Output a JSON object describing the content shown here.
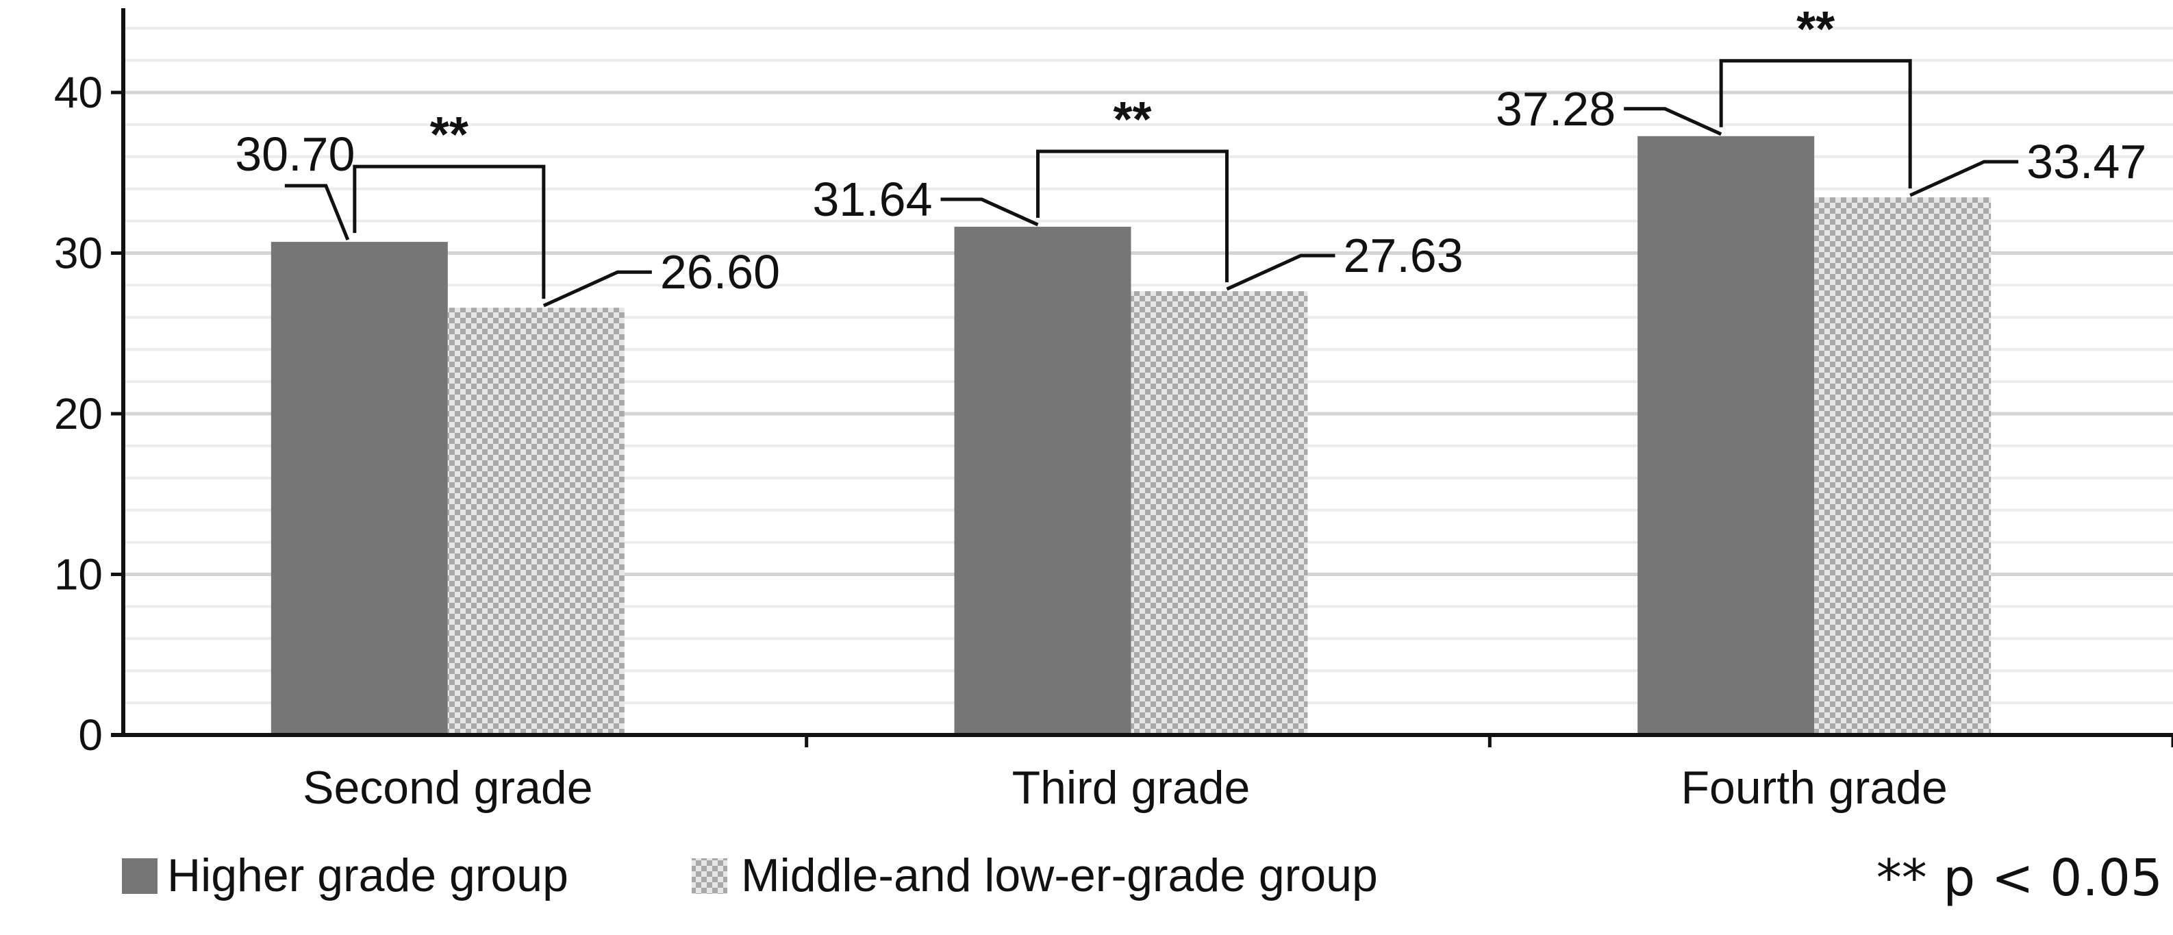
{
  "chart_data": {
    "type": "bar",
    "categories": [
      "Second grade",
      "Third grade",
      "Fourth grade"
    ],
    "series": [
      {
        "name": "Higher grade group",
        "values": [
          30.7,
          31.64,
          37.28
        ],
        "color": "#767676",
        "pattern": "solid"
      },
      {
        "name": "Middle-and low-er-grade group",
        "values": [
          26.6,
          27.63,
          33.47
        ],
        "color": "#bdbdbd",
        "pattern": "checker"
      }
    ],
    "value_labels": [
      [
        "30.70",
        "31.64",
        "37.28"
      ],
      [
        "26.60",
        "27.63",
        "33.47"
      ]
    ],
    "y_ticks": [
      "0",
      "10",
      "20",
      "30",
      "40"
    ],
    "ylim": [
      0,
      45
    ],
    "y_step": 10,
    "grid": true,
    "minor_grid": true,
    "significance": [
      "**",
      "**",
      "**"
    ],
    "legend_position": "bottom-left",
    "note": "** p < 0.05",
    "title": "",
    "xlabel": "",
    "ylabel": ""
  }
}
